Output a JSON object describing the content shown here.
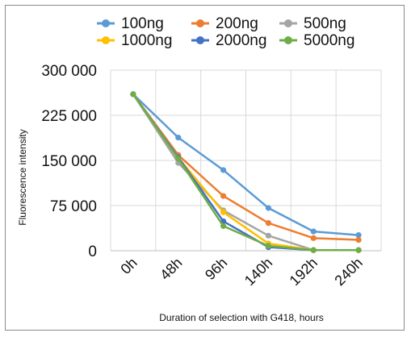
{
  "chart_data": {
    "type": "line",
    "title": "",
    "xlabel": "Duration of selection with G418, hours",
    "ylabel": "Fluorescence intensity",
    "categories": [
      "0h",
      "48h",
      "96h",
      "140h",
      "192h",
      "240h"
    ],
    "yticks": [
      "0",
      "75 000",
      "150 000",
      "225 000",
      "300 000"
    ],
    "ylim": [
      0,
      300000
    ],
    "grid": true,
    "legend_position": "top",
    "series": [
      {
        "name": "100ng",
        "color": "#5B9BD5",
        "values": [
          260000,
          188000,
          134000,
          71000,
          32000,
          26000
        ]
      },
      {
        "name": "200ng",
        "color": "#ED7D31",
        "values": [
          260000,
          159000,
          91000,
          46000,
          21000,
          18000
        ]
      },
      {
        "name": "500ng",
        "color": "#A5A5A5",
        "values": [
          260000,
          146000,
          67000,
          25000,
          1000,
          1000
        ]
      },
      {
        "name": "1000ng",
        "color": "#FFC000",
        "values": [
          260000,
          155000,
          64000,
          12000,
          1000,
          1000
        ]
      },
      {
        "name": "2000ng",
        "color": "#4472C4",
        "values": [
          260000,
          155000,
          49000,
          6000,
          1000,
          1000
        ]
      },
      {
        "name": "5000ng",
        "color": "#70AD47",
        "values": [
          260000,
          153000,
          41000,
          8000,
          1000,
          1000
        ]
      }
    ]
  }
}
